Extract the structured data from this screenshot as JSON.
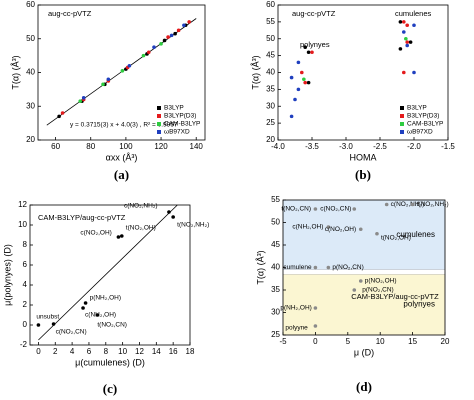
{
  "chart_data": [
    {
      "type": "scatter",
      "panel": "(a)",
      "xlabel": "αxx (Å³)",
      "ylabel": "T(α) (Å³)",
      "annotations": [
        "aug-cc-pVTZ",
        "y = 0.3715(3) x + 4.0(3) , R² = 0.9967"
      ],
      "xlim": [
        50,
        145
      ],
      "ylim": [
        20,
        60
      ],
      "xticks": [
        60,
        80,
        100,
        120,
        140
      ],
      "yticks": [
        20,
        30,
        40,
        50,
        60
      ],
      "legend": "lower right",
      "series": [
        {
          "name": "B3LYP",
          "color": "#000000",
          "x": [
            62,
            75,
            88,
            100,
            112,
            122,
            128,
            134
          ],
          "values": [
            27,
            31.5,
            36.5,
            41,
            45.5,
            49.5,
            51.5,
            54
          ]
        },
        {
          "name": "B3LYP(D3)",
          "color": "#e41a1c",
          "x": [
            64,
            76,
            90,
            101,
            113,
            124,
            130,
            136
          ],
          "values": [
            28,
            32,
            37.5,
            41.5,
            46,
            50.5,
            52.5,
            55
          ]
        },
        {
          "name": "CAM-B3LYP",
          "color": "#2ecc40",
          "x": [
            74,
            87,
            98,
            110,
            120
          ],
          "values": [
            31.5,
            36.5,
            40.5,
            45,
            48.5
          ]
        },
        {
          "name": "ωB97XD",
          "color": "#1f3fbf",
          "x": [
            76,
            90,
            102,
            116,
            126,
            133
          ],
          "values": [
            32.5,
            38,
            42,
            47.5,
            51,
            54
          ]
        }
      ],
      "fit": {
        "x": [
          55,
          140
        ],
        "values": [
          24.4,
          56
        ]
      }
    },
    {
      "type": "scatter",
      "panel": "(b)",
      "xlabel": "HOMA",
      "ylabel": "T(α) (Å³)",
      "annotations": [
        "aug-cc-pVTZ",
        "polynyes",
        "cumulenes"
      ],
      "xlim": [
        -4,
        -1.5
      ],
      "ylim": [
        20,
        60
      ],
      "xticks": [
        {
          "value": -4,
          "label": "-4.0"
        },
        -3.5,
        {
          "value": -3,
          "label": "-3.0"
        },
        -2.5,
        {
          "value": -2,
          "label": "-2.0"
        },
        -1.5
      ],
      "yticks": [
        20,
        25,
        30,
        35,
        40,
        45,
        50,
        55,
        60
      ],
      "legend": "lower right",
      "series": [
        {
          "name": "B3LYP",
          "color": "#000000",
          "x": [
            -3.55,
            -3.55,
            -3.6,
            -2.2,
            -2.05,
            -2.2
          ],
          "values": [
            37,
            46,
            47.5,
            55,
            49,
            47
          ]
        },
        {
          "name": "B3LYP(D3)",
          "color": "#e41a1c",
          "x": [
            -3.6,
            -3.65,
            -3.5,
            -2.15,
            -2.1,
            -2.1,
            -2.15
          ],
          "values": [
            37,
            40,
            46,
            55,
            54,
            49,
            40
          ]
        },
        {
          "name": "CAM-B3LYP",
          "color": "#2ecc40",
          "x": [
            -3.62,
            -2.12
          ],
          "values": [
            38,
            50
          ]
        },
        {
          "name": "ωB97XD",
          "color": "#1f3fbf",
          "x": [
            -3.8,
            -3.75,
            -3.7,
            -3.8,
            -3.7,
            -2.0,
            -2.15,
            -2.1,
            -2.0
          ],
          "values": [
            27,
            32,
            35,
            38.5,
            43,
            54,
            52,
            48,
            40
          ]
        }
      ]
    },
    {
      "type": "scatter",
      "panel": "(c)",
      "xlabel": "μ(cumulenes) (D)",
      "ylabel": "μ(polynyes) (D)",
      "annotations": [
        "CAM-B3LYP/aug-cc-pVTZ"
      ],
      "xlim": [
        -1,
        18
      ],
      "ylim": [
        -2,
        12
      ],
      "xticks": [
        0,
        2,
        4,
        6,
        8,
        10,
        12,
        14,
        16,
        18
      ],
      "yticks": [
        -2,
        0,
        2,
        4,
        6,
        8,
        10,
        12
      ],
      "series": [
        {
          "color": "#000000",
          "x": [
            0,
            1.8,
            5.3,
            5.6,
            7.0,
            9.5,
            9.9,
            15.5,
            16.0
          ],
          "values": [
            0,
            0.1,
            1.7,
            2.2,
            1.0,
            8.8,
            8.9,
            11.3,
            10.8
          ],
          "point_labels": [
            "unsubst",
            "c(NO₂,CN)",
            "c(NH₂,OH)",
            "p(NH₂,OH)",
            "t(NO₂,CN)",
            "c(NO₂,OH)",
            "t(NO₂,OH)",
            "c(NO₂,NH₂)",
            "t(NO₂,NH₂)"
          ]
        }
      ],
      "fit": {
        "x": [
          0,
          16.5
        ],
        "values": [
          -1.5,
          12
        ]
      }
    },
    {
      "type": "scatter",
      "panel": "(d)",
      "xlabel": "μ (D)",
      "ylabel": "T(α) (Å³)",
      "annotations": [
        "CAM-B3LYP/aug-cc-pVTZ"
      ],
      "xlim": [
        -5,
        20
      ],
      "ylim": [
        25,
        55
      ],
      "xticks": [
        -5,
        0,
        5,
        10,
        15,
        20
      ],
      "yticks": [
        25,
        30,
        35,
        40,
        45,
        50,
        55
      ],
      "regions": [
        {
          "label": "cumulenes",
          "range": [
            39.5,
            55
          ],
          "color": "#dceaf8",
          "text_color": "#2233bb"
        },
        {
          "label": "polynyes",
          "range": [
            25,
            38.5
          ],
          "color": "#fbf6d2",
          "text_color": "#a08a00"
        }
      ],
      "series": [
        {
          "color": "#8a8a8a",
          "x": [
            0,
            2,
            0,
            6,
            11,
            15,
            2,
            7,
            9.5,
            7,
            6,
            0,
            0
          ],
          "values": [
            40,
            40,
            53,
            53,
            54,
            54,
            49,
            48.5,
            47.5,
            37,
            35,
            31,
            27
          ],
          "point_labels": [
            "cumulene",
            "p(NO₂,CN)",
            "t(NO₂,CN)",
            "c(NO₂,CN)",
            "c(NO₂,NH₂)",
            "t(NO₂,NH₂)",
            "c(NH₂,OH)",
            "c(NO₂,OH)",
            "t(NO₂,OH)",
            "p(NO₂,OH)",
            "p(NO₂,CN)",
            "p(NH₂,OH)",
            "polyyne"
          ]
        }
      ]
    }
  ]
}
